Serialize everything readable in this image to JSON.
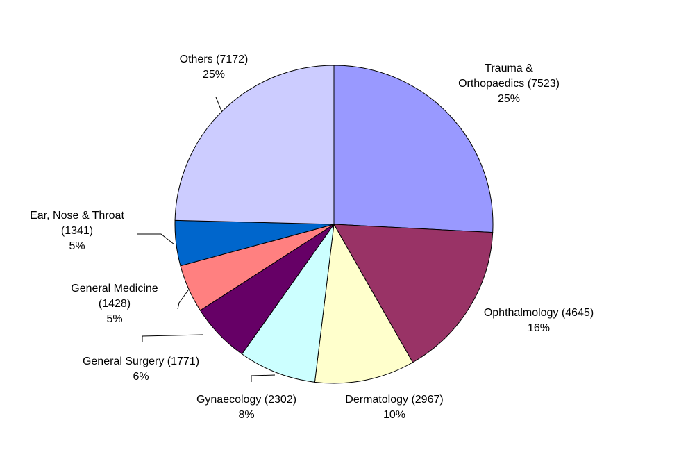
{
  "chart_data": {
    "type": "pie",
    "categories": [
      "Trauma & Orthopaedics",
      "Ophthalmology",
      "Dermatology",
      "Gynaecology",
      "General Surgery",
      "General Medicine",
      "Ear, Nose & Throat",
      "Others"
    ],
    "values": [
      7523,
      4645,
      2967,
      2302,
      1771,
      1428,
      1341,
      7172
    ],
    "value_labels": [
      "(7523)",
      "(4645)",
      "(2967)",
      "(2302)",
      "(1771)",
      "(1428)",
      "(1341)",
      "(7172)"
    ],
    "percent_labels": [
      "25%",
      "16%",
      "10%",
      "8%",
      "6%",
      "5%",
      "5%",
      "25%"
    ],
    "colors": [
      "#9999ff",
      "#993366",
      "#ffffcc",
      "#ccffff",
      "#660066",
      "#ff8080",
      "#0066cc",
      "#ccccff"
    ]
  }
}
